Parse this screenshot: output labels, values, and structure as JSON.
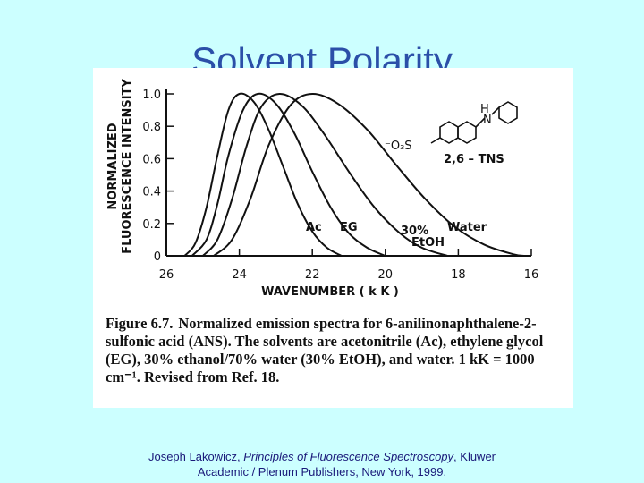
{
  "slide": {
    "title": "Solvent Polarity",
    "citation": {
      "author": "Joseph Lakowicz, ",
      "book": "Principles of Fluorescence Spectroscopy",
      "rest_line1": ", Kluwer",
      "line2": "Academic / Plenum Publishers, New York, 1999."
    }
  },
  "figure": {
    "caption_number": "Figure 6.7.",
    "caption_text": "Normalized emission spectra for 6-anilinonaphthalene-2-sulfonic acid (ANS). The solvents are acetonitrile (Ac), ethylene glycol (EG), 30% ethanol/70% water (30% EtOH), and water. 1 kK = 1000 cm⁻¹. Revised from Ref. 18.",
    "structure_label": "2,6 – TNS",
    "structure_group": "⁻O₃S",
    "structure_h": "H",
    "structure_n": "N"
  },
  "chart_data": {
    "type": "line",
    "ylabel_line1": "NORMALIZED",
    "ylabel_line2": "FLUORESCENCE INTENSITY",
    "xlabel": "WAVENUMBER  ( k K )",
    "xlim": [
      26,
      16
    ],
    "ylim": [
      0,
      1.0
    ],
    "x_ticks": [
      26,
      24,
      22,
      20,
      18,
      16
    ],
    "y_ticks": [
      0,
      0.2,
      0.4,
      0.6,
      0.8,
      1.0
    ],
    "y_tick_labels": [
      "0",
      "0.2",
      "0.4",
      "0.6",
      "0.8",
      "1.0"
    ],
    "series": [
      {
        "name": "Ac",
        "peak": 24.0,
        "points": [
          [
            25.5,
            0.0
          ],
          [
            25.2,
            0.08
          ],
          [
            24.9,
            0.3
          ],
          [
            24.6,
            0.62
          ],
          [
            24.3,
            0.9
          ],
          [
            24.0,
            1.0
          ],
          [
            23.6,
            0.95
          ],
          [
            23.2,
            0.78
          ],
          [
            22.8,
            0.55
          ],
          [
            22.4,
            0.32
          ],
          [
            22.0,
            0.15
          ],
          [
            21.6,
            0.05
          ],
          [
            21.2,
            0.0
          ]
        ]
      },
      {
        "name": "EG",
        "peak": 23.5,
        "points": [
          [
            25.3,
            0.0
          ],
          [
            24.9,
            0.1
          ],
          [
            24.6,
            0.32
          ],
          [
            24.3,
            0.62
          ],
          [
            23.9,
            0.9
          ],
          [
            23.5,
            1.0
          ],
          [
            23.0,
            0.94
          ],
          [
            22.5,
            0.76
          ],
          [
            22.0,
            0.52
          ],
          [
            21.5,
            0.3
          ],
          [
            21.0,
            0.14
          ],
          [
            20.5,
            0.05
          ],
          [
            20.0,
            0.0
          ]
        ]
      },
      {
        "name": "30% EtOH",
        "peak": 22.9,
        "points": [
          [
            25.0,
            0.0
          ],
          [
            24.6,
            0.1
          ],
          [
            24.2,
            0.35
          ],
          [
            23.8,
            0.68
          ],
          [
            23.4,
            0.92
          ],
          [
            22.9,
            1.0
          ],
          [
            22.3,
            0.93
          ],
          [
            21.7,
            0.76
          ],
          [
            21.0,
            0.52
          ],
          [
            20.3,
            0.3
          ],
          [
            19.6,
            0.14
          ],
          [
            19.0,
            0.05
          ],
          [
            18.3,
            0.0
          ]
        ]
      },
      {
        "name": "Water",
        "peak": 22.0,
        "points": [
          [
            24.7,
            0.0
          ],
          [
            24.2,
            0.1
          ],
          [
            23.7,
            0.35
          ],
          [
            23.2,
            0.68
          ],
          [
            22.6,
            0.93
          ],
          [
            22.0,
            1.0
          ],
          [
            21.3,
            0.94
          ],
          [
            20.5,
            0.78
          ],
          [
            19.7,
            0.56
          ],
          [
            18.9,
            0.35
          ],
          [
            18.1,
            0.18
          ],
          [
            17.3,
            0.07
          ],
          [
            16.5,
            0.01
          ],
          [
            16.2,
            0.0
          ]
        ]
      }
    ],
    "labels": {
      "ac": "Ac",
      "eg": "EG",
      "etoh_line1": "30%",
      "etoh_line2": "EtOH",
      "water": "Water"
    }
  }
}
